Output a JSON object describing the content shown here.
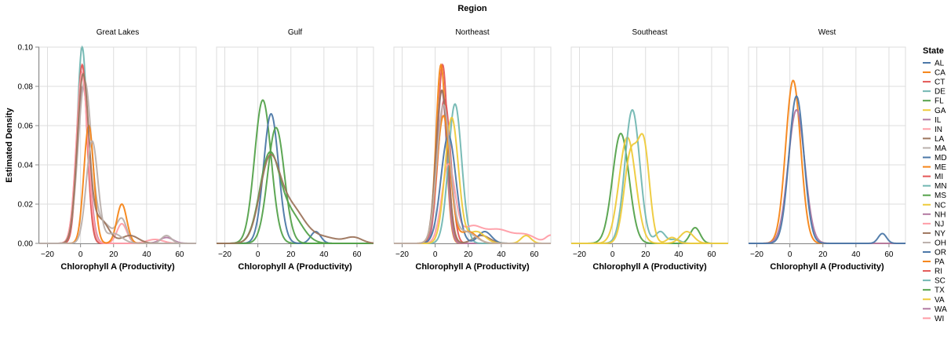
{
  "chart_data": {
    "type": "line",
    "title": "Region",
    "xlabel": "Chlorophyll A (Productivity)",
    "ylabel": "Estimated Density",
    "xlim": [
      -25,
      70
    ],
    "ylim": [
      0,
      0.1
    ],
    "x_ticks": [
      "−20",
      "0",
      "20",
      "40",
      "60"
    ],
    "y_ticks": [
      "0.00",
      "0.02",
      "0.04",
      "0.06",
      "0.08",
      "0.10"
    ],
    "grid": true,
    "legend_title": "State",
    "legend_placement": "right",
    "states": [
      {
        "name": "AL",
        "color": "#4c78a8"
      },
      {
        "name": "CA",
        "color": "#f58518"
      },
      {
        "name": "CT",
        "color": "#e45756"
      },
      {
        "name": "DE",
        "color": "#72b7b2"
      },
      {
        "name": "FL",
        "color": "#54a24b"
      },
      {
        "name": "GA",
        "color": "#eeca3b"
      },
      {
        "name": "IL",
        "color": "#b279a2"
      },
      {
        "name": "IN",
        "color": "#ff9da6"
      },
      {
        "name": "LA",
        "color": "#9d755d"
      },
      {
        "name": "MA",
        "color": "#bab0ac"
      },
      {
        "name": "MD",
        "color": "#4c78a8"
      },
      {
        "name": "ME",
        "color": "#f58518"
      },
      {
        "name": "MI",
        "color": "#e45756"
      },
      {
        "name": "MN",
        "color": "#72b7b2"
      },
      {
        "name": "MS",
        "color": "#54a24b"
      },
      {
        "name": "NC",
        "color": "#eeca3b"
      },
      {
        "name": "NH",
        "color": "#b279a2"
      },
      {
        "name": "NJ",
        "color": "#ff9da6"
      },
      {
        "name": "NY",
        "color": "#9d755d"
      },
      {
        "name": "OH",
        "color": "#bab0ac"
      },
      {
        "name": "OR",
        "color": "#4c78a8"
      },
      {
        "name": "PA",
        "color": "#f58518"
      },
      {
        "name": "RI",
        "color": "#e45756"
      },
      {
        "name": "SC",
        "color": "#72b7b2"
      },
      {
        "name": "TX",
        "color": "#54a24b"
      },
      {
        "name": "VA",
        "color": "#eeca3b"
      },
      {
        "name": "WA",
        "color": "#b279a2"
      },
      {
        "name": "WI",
        "color": "#ff9da6"
      }
    ],
    "facets": [
      {
        "name": "Great Lakes",
        "series": [
          {
            "state": "MN",
            "comps": [
              [
                1,
                0.1,
                3
              ]
            ]
          },
          {
            "state": "MI",
            "comps": [
              [
                1,
                0.091,
                3
              ]
            ]
          },
          {
            "state": "IL",
            "comps": [
              [
                1.5,
                0.08,
                3.5
              ],
              [
                52,
                0.003,
                4
              ]
            ]
          },
          {
            "state": "IN",
            "comps": [
              [
                1,
                0.087,
                3.5
              ],
              [
                25,
                0.01,
                3
              ],
              [
                45,
                0.002,
                5
              ]
            ]
          },
          {
            "state": "OH",
            "comps": [
              [
                2.5,
                0.082,
                4
              ],
              [
                14,
                0.01,
                5
              ],
              [
                25,
                0.012,
                3
              ],
              [
                52,
                0.004,
                3
              ]
            ]
          },
          {
            "state": "WI",
            "comps": [
              [
                1,
                0.085,
                3.5
              ]
            ]
          },
          {
            "state": "PA",
            "comps": [
              [
                5,
                0.06,
                3
              ],
              [
                25,
                0.02,
                3
              ]
            ]
          },
          {
            "state": "NY",
            "comps": [
              [
                1.5,
                0.085,
                3.5
              ],
              [
                12,
                0.012,
                5
              ],
              [
                30,
                0.004,
                5
              ]
            ]
          },
          {
            "state": "MA",
            "comps": [
              [
                7,
                0.052,
                3.5
              ],
              [
                20,
                0.005,
                5
              ]
            ]
          }
        ]
      },
      {
        "name": "Gulf",
        "series": [
          {
            "state": "FL",
            "comps": [
              [
                3,
                0.073,
                5
              ]
            ]
          },
          {
            "state": "AL",
            "comps": [
              [
                8,
                0.066,
                4.5
              ],
              [
                35,
                0.006,
                3
              ]
            ]
          },
          {
            "state": "MS",
            "comps": [
              [
                11,
                0.059,
                5
              ]
            ]
          },
          {
            "state": "TX",
            "comps": [
              [
                7,
                0.044,
                6
              ],
              [
                20,
                0.014,
                7
              ]
            ]
          },
          {
            "state": "LA",
            "comps": [
              [
                7,
                0.04,
                6
              ],
              [
                20,
                0.018,
                8
              ],
              [
                40,
                0.003,
                8
              ],
              [
                58,
                0.003,
                5
              ]
            ]
          }
        ]
      },
      {
        "name": "Northeast",
        "series": [
          {
            "state": "CT",
            "comps": [
              [
                4.5,
                0.091,
                3
              ]
            ]
          },
          {
            "state": "ME",
            "comps": [
              [
                3.5,
                0.091,
                3
              ]
            ]
          },
          {
            "state": "RI",
            "comps": [
              [
                4.5,
                0.058,
                3.5
              ],
              [
                8,
                0.025,
                3
              ]
            ]
          },
          {
            "state": "NH",
            "comps": [
              [
                4,
                0.078,
                3
              ]
            ]
          },
          {
            "state": "NY",
            "comps": [
              [
                4,
                0.078,
                3.5
              ],
              [
                28,
                0.004,
                5
              ]
            ]
          },
          {
            "state": "DE",
            "comps": [
              [
                12,
                0.071,
                4
              ]
            ]
          },
          {
            "state": "NJ",
            "comps": [
              [
                8,
                0.04,
                4
              ],
              [
                22,
                0.008,
                6
              ],
              [
                38,
                0.007,
                8
              ],
              [
                55,
                0.004,
                6
              ],
              [
                70,
                0.004,
                3
              ]
            ]
          },
          {
            "state": "MD",
            "comps": [
              [
                8,
                0.055,
                4.5
              ],
              [
                30,
                0.006,
                4
              ]
            ]
          },
          {
            "state": "VA",
            "comps": [
              [
                10,
                0.064,
                4
              ],
              [
                25,
                0.006,
                5
              ],
              [
                55,
                0.004,
                3
              ]
            ]
          },
          {
            "state": "PA",
            "comps": [
              [
                5,
                0.065,
                4
              ],
              [
                20,
                0.006,
                5
              ]
            ]
          },
          {
            "state": "MA",
            "comps": [
              [
                5,
                0.07,
                4
              ],
              [
                18,
                0.006,
                6
              ]
            ]
          }
        ]
      },
      {
        "name": "Southeast",
        "series": [
          {
            "state": "FL",
            "comps": [
              [
                5,
                0.056,
                5
              ],
              [
                50,
                0.008,
                3
              ]
            ]
          },
          {
            "state": "GA",
            "comps": [
              [
                9,
                0.054,
                5
              ],
              [
                45,
                0.006,
                4
              ]
            ]
          },
          {
            "state": "SC",
            "comps": [
              [
                12,
                0.068,
                4.5
              ],
              [
                29,
                0.006,
                3
              ],
              [
                38,
                0.002,
                3
              ]
            ]
          },
          {
            "state": "NC",
            "comps": [
              [
                11,
                0.045,
                4
              ],
              [
                19,
                0.048,
                3.5
              ],
              [
                36,
                0.003,
                3
              ]
            ]
          }
        ]
      },
      {
        "name": "West",
        "series": [
          {
            "state": "CA",
            "comps": [
              [
                2,
                0.083,
                4.5
              ]
            ]
          },
          {
            "state": "WA",
            "comps": [
              [
                4,
                0.068,
                5
              ]
            ]
          },
          {
            "state": "OR",
            "comps": [
              [
                4,
                0.075,
                4.5
              ],
              [
                56,
                0.005,
                2.5
              ]
            ]
          }
        ]
      }
    ]
  }
}
